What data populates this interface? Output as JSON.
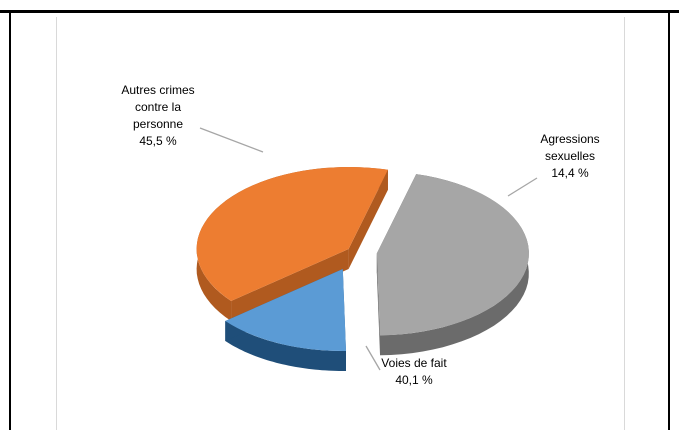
{
  "chart_data": {
    "type": "pie",
    "title": "",
    "slices": [
      {
        "label_lines": [
          "Autres crimes",
          "contre la",
          "personne"
        ],
        "value_label": "45,5 %",
        "value": 45.5,
        "color": "#a6a6a6",
        "side_color": "#6b6b6b"
      },
      {
        "label_lines": [
          "Agressions",
          "sexuelles"
        ],
        "value_label": "14,4 %",
        "value": 14.4,
        "color": "#5b9bd5",
        "side_color": "#1f4e79"
      },
      {
        "label_lines": [
          "Voies de fait"
        ],
        "value_label": "40,1 %",
        "value": 40.1,
        "color": "#ed7d31",
        "side_color": "#b05a1f"
      }
    ]
  }
}
